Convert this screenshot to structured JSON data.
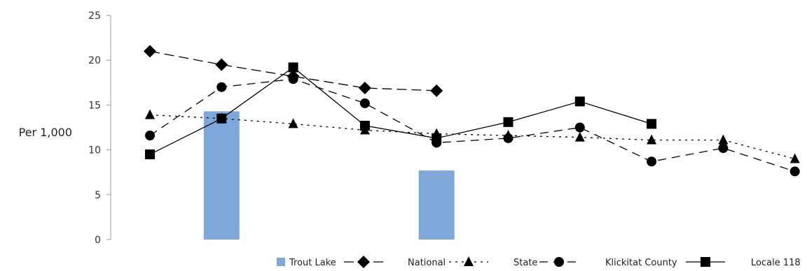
{
  "chart_data": {
    "type": "bar",
    "title": "",
    "xlabel": "",
    "ylabel": "Per 1,000",
    "ylim": [
      0,
      25
    ],
    "yticks": [
      "0",
      "5",
      "10",
      "15",
      "20",
      "25"
    ],
    "grid": false,
    "legend_position": "bottom-right",
    "x": [
      1,
      2,
      3,
      4,
      5,
      6,
      7,
      8,
      9,
      10
    ],
    "bars": [
      {
        "name": "Trout Lake",
        "color": "#7fa7d9",
        "values": [
          null,
          14.3,
          null,
          null,
          7.7,
          null,
          null,
          null,
          null,
          null
        ]
      }
    ],
    "series": [
      {
        "name": "National",
        "marker": "diamond",
        "dash": "long-dash",
        "values": [
          21.0,
          19.5,
          18.2,
          16.9,
          16.6,
          null,
          null,
          null,
          null,
          null
        ]
      },
      {
        "name": "State",
        "marker": "triangle",
        "dash": "dotted",
        "values": [
          13.9,
          13.5,
          12.9,
          12.2,
          11.8,
          11.6,
          11.4,
          11.1,
          11.1,
          9.0
        ]
      },
      {
        "name": "Klickitat County",
        "marker": "circle",
        "dash": "dashed",
        "values": [
          11.6,
          17.0,
          17.9,
          15.2,
          10.8,
          11.3,
          12.5,
          8.7,
          10.2,
          7.6
        ]
      },
      {
        "name": "Locale 118",
        "marker": "square",
        "dash": "solid",
        "values": [
          9.5,
          13.5,
          19.2,
          12.7,
          11.3,
          13.1,
          15.4,
          12.9,
          null,
          null
        ]
      }
    ]
  }
}
